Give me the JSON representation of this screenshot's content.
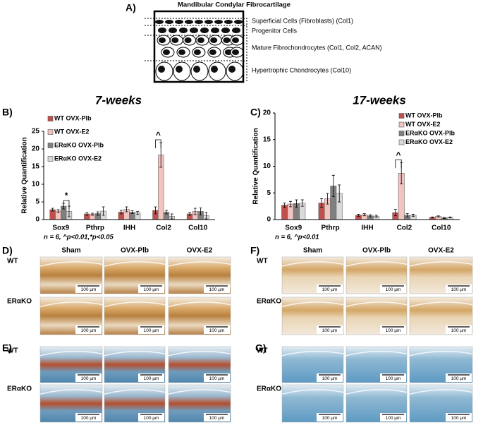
{
  "panel_labels": [
    "A)",
    "B)",
    "C)",
    "D)",
    "E)",
    "F)",
    "G)"
  ],
  "diagram": {
    "title": "Mandibular Condylar Fibrocartilage",
    "layers": [
      "Superficial Cells (Fibroblasts) (Col1)",
      "Progenitor Cells",
      "Mature Fibrochondrocytes (Col1, Col2, ACAN)",
      "Hypertrophic Chondrocytes (Col10)"
    ]
  },
  "chart_data": [
    {
      "type": "bar",
      "title": "7-weeks",
      "y_label": "Relative Quantification",
      "categories": [
        "Sox9",
        "Pthrp",
        "IHH",
        "Col2",
        "Col10"
      ],
      "series": [
        {
          "name": "WT OVX-Plb",
          "color": "#c0504d",
          "values": [
            2.8,
            1.6,
            2.1,
            2.6,
            1.6
          ],
          "errors": [
            0.4,
            0.4,
            0.5,
            1.0,
            0.4
          ]
        },
        {
          "name": "WT OVX-E2",
          "color": "#f2c4c0",
          "values": [
            2.4,
            1.5,
            2.9,
            18.3,
            2.3
          ],
          "errors": [
            0.4,
            0.3,
            0.7,
            3.5,
            0.9
          ]
        },
        {
          "name": "ERαKO OVX-Plb",
          "color": "#7f7f7f",
          "values": [
            3.8,
            1.7,
            2.1,
            2.1,
            2.3
          ],
          "errors": [
            0.8,
            0.5,
            0.4,
            0.5,
            1.0
          ]
        },
        {
          "name": "ERαKO OVX-E2",
          "color": "#d9d9d9",
          "values": [
            2.3,
            2.4,
            1.9,
            0.9,
            1.1
          ],
          "errors": [
            1.5,
            1.2,
            0.4,
            0.7,
            0.9
          ]
        }
      ],
      "ylim": [
        0,
        25
      ],
      "yticks": [
        0,
        5,
        10,
        15,
        20,
        25
      ],
      "legend": "upper left",
      "note": "n = 6, ^p<0.01,*p<0.05",
      "annotations": [
        {
          "text": "*"
        },
        {
          "text": "^"
        }
      ]
    },
    {
      "type": "bar",
      "title": "17-weeks",
      "y_label": "Relative Quantification",
      "categories": [
        "Sox9",
        "Pthrp",
        "IHH",
        "Col2",
        "Col10"
      ],
      "series": [
        {
          "name": "WT OVX-Plb",
          "color": "#c0504d",
          "values": [
            2.7,
            3.1,
            0.8,
            1.3,
            0.4
          ],
          "errors": [
            0.4,
            0.8,
            0.2,
            0.6,
            0.1
          ]
        },
        {
          "name": "WT OVX-E2",
          "color": "#f2c4c0",
          "values": [
            2.9,
            3.9,
            0.9,
            8.7,
            0.6
          ],
          "errors": [
            0.5,
            1.0,
            0.2,
            2.0,
            0.1
          ]
        },
        {
          "name": "ERαKO OVX-Plb",
          "color": "#7f7f7f",
          "values": [
            3.0,
            6.3,
            0.7,
            0.8,
            0.3
          ],
          "errors": [
            0.7,
            2.0,
            0.2,
            0.3,
            0.1
          ]
        },
        {
          "name": "ERαKO OVX-E2",
          "color": "#d9d9d9",
          "values": [
            3.1,
            4.9,
            0.6,
            0.8,
            0.4
          ],
          "errors": [
            0.6,
            1.6,
            0.2,
            0.2,
            0.1
          ]
        }
      ],
      "ylim": [
        0,
        20
      ],
      "yticks": [
        0,
        5,
        10,
        15,
        20
      ],
      "legend": "upper right",
      "note": "n = 6, ^p<0.01",
      "annotations": [
        {
          "text": "^"
        }
      ]
    }
  ],
  "histology": {
    "columns": [
      "Sham",
      "OVX-Plb",
      "OVX-E2"
    ],
    "rows": [
      "WT",
      "ERαKO"
    ],
    "scale_bar": "100 µm"
  }
}
